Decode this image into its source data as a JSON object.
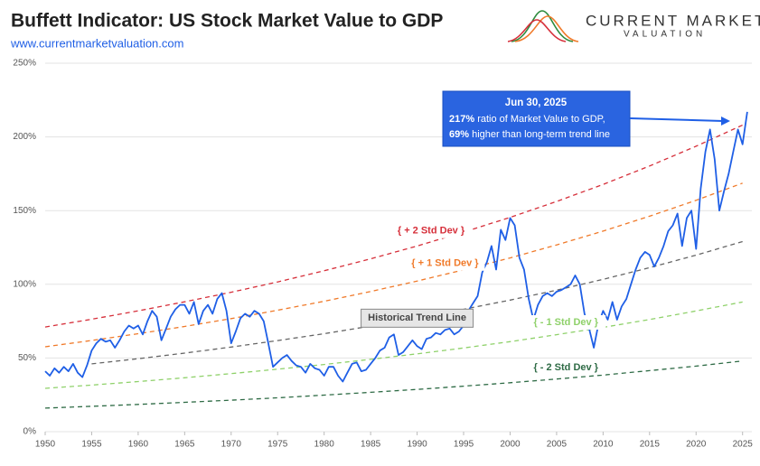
{
  "header": {
    "title": "Buffett Indicator: US Stock Market Value to GDP",
    "url": "www.currentmarketvaluation.com",
    "logo_top": "CURRENT MARKET",
    "logo_bottom": "VALUATION"
  },
  "chart_data": {
    "type": "line",
    "xlim": [
      1950,
      2026
    ],
    "xticks": [
      1950,
      1955,
      1960,
      1965,
      1970,
      1975,
      1980,
      1985,
      1990,
      1995,
      2000,
      2005,
      2010,
      2015,
      2020,
      2025
    ],
    "ylim": [
      0,
      250
    ],
    "yticks": [
      {
        "value": 0,
        "label": "0%"
      },
      {
        "value": 50,
        "label": "50%"
      },
      {
        "value": 100,
        "label": "100%"
      },
      {
        "value": 150,
        "label": "150%"
      },
      {
        "value": 200,
        "label": "200%"
      },
      {
        "value": 250,
        "label": "250%"
      }
    ],
    "grid": true,
    "annotation": {
      "title": "Jun 30, 2025",
      "lines": [
        {
          "bold": "217%",
          "text": " ratio of Market Value to GDP,"
        },
        {
          "bold": "69%",
          "text": " higher than long-term trend line"
        }
      ]
    },
    "series": [
      {
        "color": "#1f5fe6",
        "dashed": false,
        "x": [
          1950,
          1950.5,
          1951,
          1951.5,
          1952,
          1952.5,
          1953,
          1953.5,
          1954,
          1954.5,
          1955,
          1955.5,
          1956,
          1956.5,
          1957,
          1957.5,
          1958,
          1958.5,
          1959,
          1959.5,
          1960,
          1960.5,
          1961,
          1961.5,
          1962,
          1962.5,
          1963,
          1963.5,
          1964,
          1964.5,
          1965,
          1965.5,
          1966,
          1966.5,
          1967,
          1967.5,
          1968,
          1968.5,
          1969,
          1969.5,
          1970,
          1970.5,
          1971,
          1971.5,
          1972,
          1972.5,
          1973,
          1973.5,
          1974,
          1974.5,
          1975,
          1975.5,
          1976,
          1976.5,
          1977,
          1977.5,
          1978,
          1978.5,
          1979,
          1979.5,
          1980,
          1980.5,
          1981,
          1981.5,
          1982,
          1982.5,
          1983,
          1983.5,
          1984,
          1984.5,
          1985,
          1985.5,
          1986,
          1986.5,
          1987,
          1987.5,
          1988,
          1988.5,
          1989,
          1989.5,
          1990,
          1990.5,
          1991,
          1991.5,
          1992,
          1992.5,
          1993,
          1993.5,
          1994,
          1994.5,
          1995,
          1995.5,
          1996,
          1996.5,
          1997,
          1997.5,
          1998,
          1998.5,
          1999,
          1999.5,
          2000,
          2000.5,
          2001,
          2001.5,
          2002,
          2002.5,
          2003,
          2003.5,
          2004,
          2004.5,
          2005,
          2005.5,
          2006,
          2006.5,
          2007,
          2007.5,
          2008,
          2008.5,
          2009,
          2009.5,
          2010,
          2010.5,
          2011,
          2011.5,
          2012,
          2012.5,
          2013,
          2013.5,
          2014,
          2014.5,
          2015,
          2015.5,
          2016,
          2016.5,
          2017,
          2017.5,
          2018,
          2018.5,
          2019,
          2019.5,
          2020,
          2020.5,
          2021,
          2021.5,
          2022,
          2022.5,
          2023,
          2023.5,
          2024,
          2024.5,
          2025,
          2025.5
        ],
        "values": [
          41,
          38,
          43,
          40,
          44,
          41,
          46,
          40,
          37,
          45,
          55,
          60,
          63,
          61,
          62,
          57,
          62,
          68,
          72,
          70,
          72,
          66,
          75,
          82,
          78,
          62,
          70,
          78,
          83,
          86,
          86,
          80,
          88,
          73,
          82,
          86,
          80,
          90,
          94,
          82,
          60,
          68,
          77,
          80,
          78,
          82,
          80,
          75,
          60,
          44,
          47,
          50,
          52,
          48,
          45,
          44,
          40,
          46,
          43,
          42,
          38,
          44,
          44,
          38,
          34,
          40,
          46,
          47,
          41,
          42,
          46,
          50,
          55,
          57,
          64,
          66,
          52,
          54,
          58,
          62,
          58,
          56,
          63,
          64,
          67,
          66,
          69,
          70,
          66,
          68,
          72,
          82,
          87,
          92,
          108,
          115,
          126,
          110,
          137,
          130,
          145,
          140,
          118,
          110,
          90,
          76,
          86,
          92,
          94,
          92,
          95,
          96,
          98,
          100,
          106,
          100,
          80,
          70,
          57,
          73,
          82,
          76,
          88,
          76,
          85,
          90,
          100,
          110,
          118,
          122,
          120,
          112,
          118,
          126,
          136,
          140,
          148,
          126,
          145,
          150,
          124,
          165,
          190,
          205,
          185,
          150,
          163,
          175,
          190,
          205,
          195,
          217
        ]
      },
      {
        "name": "{ + 2 Std Dev }",
        "color": "#d62f3a",
        "dashed": true,
        "x": [
          1950,
          1955,
          1960,
          1965,
          1970,
          1975,
          1980,
          1985,
          1990,
          1995,
          2000,
          2005,
          2010,
          2015,
          2020,
          2025
        ],
        "values": [
          71,
          76.3,
          82,
          88.1,
          94.6,
          101.6,
          109.2,
          117.3,
          126,
          135.4,
          145.4,
          156.2,
          167.8,
          180.3,
          193.7,
          208
        ]
      },
      {
        "name": "{ + 1 Std Dev }",
        "color": "#f07a2a",
        "dashed": true,
        "x": [
          1950,
          1955,
          1960,
          1965,
          1970,
          1975,
          1980,
          1985,
          1990,
          1995,
          2000,
          2005,
          2010,
          2015,
          2020,
          2025
        ],
        "values": [
          57.6,
          61.9,
          66.5,
          71.4,
          76.7,
          82.4,
          88.5,
          95.1,
          102.2,
          109.8,
          117.9,
          126.7,
          136.1,
          146.2,
          157,
          168.6
        ]
      },
      {
        "name": "Historical Trend Line",
        "color": "#666666",
        "dashed": true,
        "x": [
          1955,
          1960,
          1965,
          1970,
          1975,
          1980,
          1985,
          1990,
          1995,
          2000,
          2005,
          2010,
          2015,
          2020,
          2025
        ],
        "values": [
          46,
          49.5,
          53.3,
          57.4,
          61.8,
          66.5,
          71.6,
          77,
          83,
          89.3,
          96,
          103.4,
          111.3,
          119.8,
          129
        ]
      },
      {
        "name": "{ - 1 Std Dev }",
        "color": "#8fd16a",
        "dashed": true,
        "x": [
          1950,
          1955,
          1960,
          1965,
          1970,
          1975,
          1980,
          1985,
          1990,
          1995,
          2000,
          2005,
          2010,
          2015,
          2020,
          2025
        ],
        "values": [
          29.4,
          31.6,
          34,
          36.6,
          39.4,
          42.4,
          45.6,
          49.1,
          52.8,
          56.8,
          61.1,
          65.8,
          70.8,
          76.1,
          81.9,
          88
        ]
      },
      {
        "name": "{ - 2 Std Dev }",
        "color": "#2e6b45",
        "dashed": true,
        "x": [
          1950,
          1955,
          1960,
          1965,
          1970,
          1975,
          1980,
          1985,
          1990,
          1995,
          2000,
          2005,
          2010,
          2015,
          2020,
          2025
        ],
        "values": [
          16,
          17.2,
          18.5,
          19.9,
          21.4,
          23,
          24.8,
          26.7,
          28.7,
          30.9,
          33.2,
          35.7,
          38.4,
          41.4,
          44.5,
          48
        ]
      }
    ]
  }
}
